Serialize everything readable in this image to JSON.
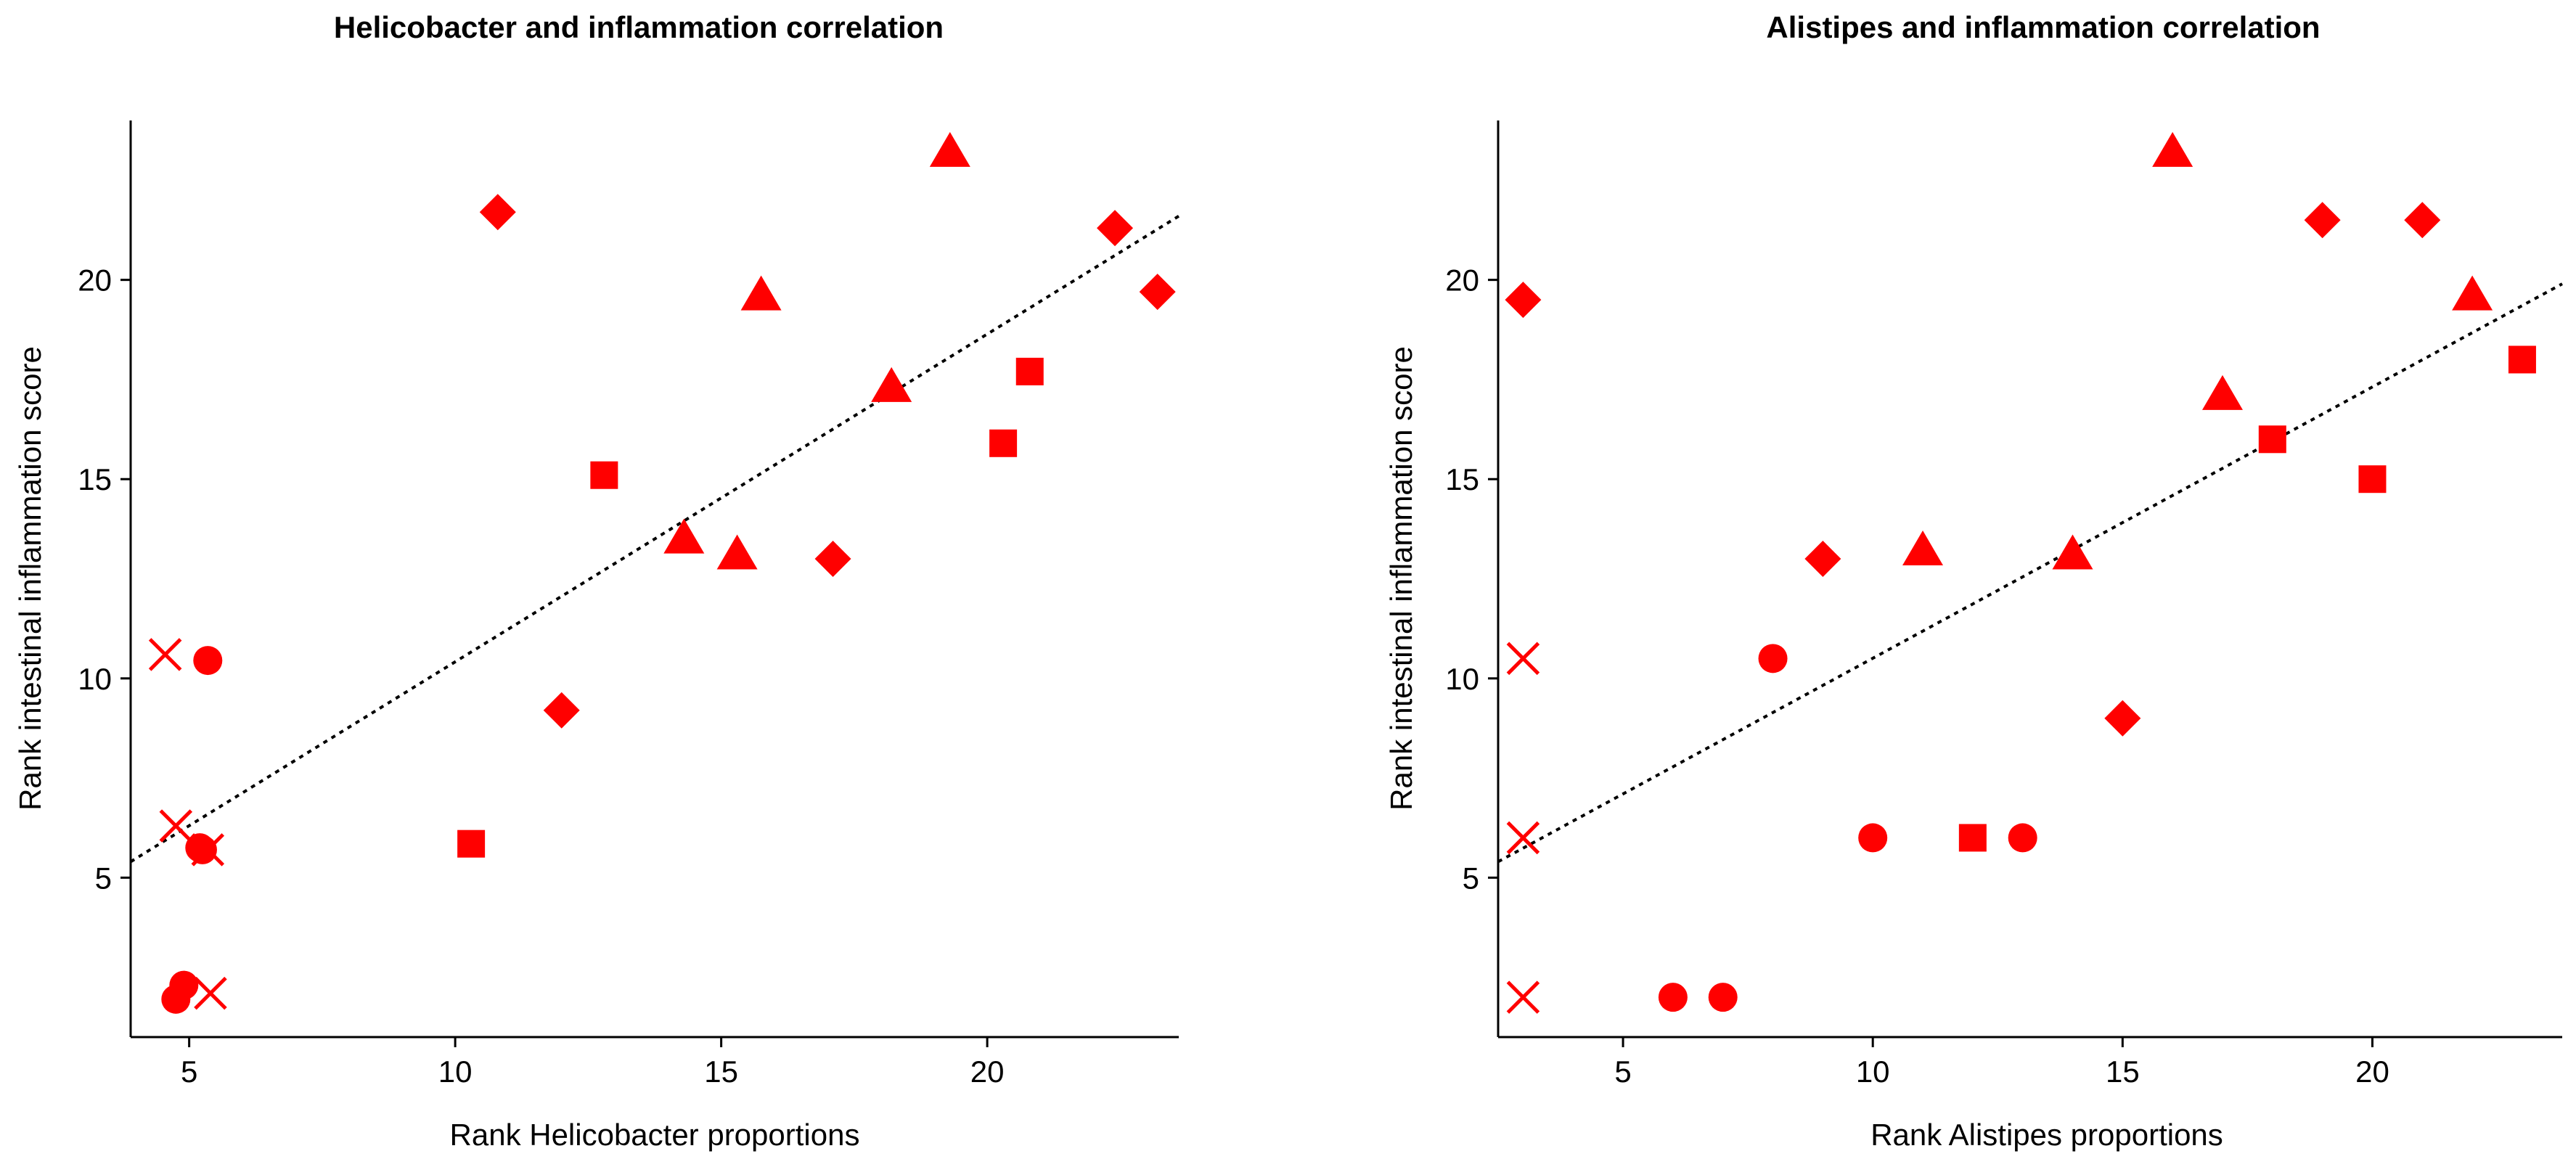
{
  "colors": {
    "marker": "#ff0000",
    "axis": "#000000"
  },
  "chart_data": [
    {
      "type": "scatter",
      "title": "Helicobacter and inflammation correlation",
      "xlabel": "Rank Helicobacter proportions",
      "ylabel": "Rank intestinal inflammation score",
      "xlim": [
        3.9,
        23.6
      ],
      "ylim": [
        1.0,
        24.0
      ],
      "xticks": [
        5,
        10,
        15,
        20
      ],
      "yticks": [
        5,
        10,
        15,
        20
      ],
      "grid": false,
      "legend": "none",
      "trendline": {
        "x": [
          3.9,
          23.6
        ],
        "y": [
          5.4,
          21.6
        ]
      },
      "series": [
        {
          "name": "circle",
          "marker": "circle",
          "points": [
            [
              5.35,
              10.45
            ],
            [
              5.2,
              5.75
            ],
            [
              5.25,
              5.7
            ],
            [
              4.9,
              2.3
            ],
            [
              4.75,
              1.95
            ]
          ]
        },
        {
          "name": "cross",
          "marker": "x",
          "points": [
            [
              4.55,
              10.6
            ],
            [
              4.75,
              6.3
            ],
            [
              5.35,
              5.7
            ],
            [
              5.4,
              2.1
            ]
          ]
        },
        {
          "name": "square",
          "marker": "square",
          "points": [
            [
              10.3,
              5.85
            ],
            [
              12.8,
              15.1
            ],
            [
              20.3,
              15.9
            ],
            [
              20.8,
              17.7
            ]
          ]
        },
        {
          "name": "diamond",
          "marker": "diamond",
          "points": [
            [
              10.8,
              21.7
            ],
            [
              12.0,
              9.2
            ],
            [
              17.1,
              13.0
            ],
            [
              22.4,
              21.3
            ],
            [
              23.2,
              19.7
            ]
          ]
        },
        {
          "name": "triangle",
          "marker": "triangle",
          "points": [
            [
              14.3,
              13.5
            ],
            [
              15.3,
              13.1
            ],
            [
              15.75,
              19.6
            ],
            [
              18.2,
              17.3
            ],
            [
              19.3,
              23.2
            ]
          ]
        }
      ]
    },
    {
      "type": "scatter",
      "title": "Alistipes and inflammation correlation",
      "xlabel": "Rank Alistipes proportions",
      "ylabel": "Rank intestinal inflammation score",
      "xlim": [
        2.5,
        23.8
      ],
      "ylim": [
        1.0,
        24.0
      ],
      "xticks": [
        5,
        10,
        15,
        20
      ],
      "yticks": [
        5,
        10,
        15,
        20
      ],
      "grid": false,
      "legend": "none",
      "trendline": {
        "x": [
          2.5,
          23.8
        ],
        "y": [
          5.4,
          19.9
        ]
      },
      "series": [
        {
          "name": "circle",
          "marker": "circle",
          "points": [
            [
              8,
              10.5
            ],
            [
              10,
              6
            ],
            [
              13,
              6
            ],
            [
              6,
              2
            ],
            [
              7,
              2
            ]
          ]
        },
        {
          "name": "cross",
          "marker": "x",
          "points": [
            [
              3,
              10.5
            ],
            [
              3,
              6
            ],
            [
              3,
              2
            ]
          ]
        },
        {
          "name": "square",
          "marker": "square",
          "points": [
            [
              12,
              6
            ],
            [
              18,
              16
            ],
            [
              20,
              15
            ],
            [
              23,
              18
            ]
          ]
        },
        {
          "name": "diamond",
          "marker": "diamond",
          "points": [
            [
              3,
              19.5
            ],
            [
              9,
              13
            ],
            [
              15,
              9
            ],
            [
              19,
              21.5
            ],
            [
              21,
              21.5
            ]
          ]
        },
        {
          "name": "triangle",
          "marker": "triangle",
          "points": [
            [
              11,
              13.2
            ],
            [
              14,
              13.1
            ],
            [
              16,
              23.2
            ],
            [
              17,
              17.1
            ],
            [
              22,
              19.6
            ]
          ]
        }
      ]
    }
  ]
}
